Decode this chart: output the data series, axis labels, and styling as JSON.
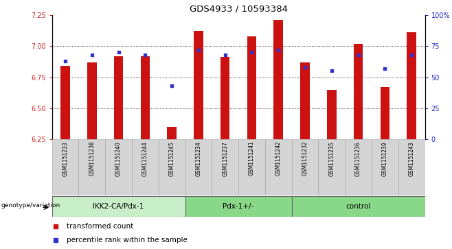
{
  "title": "GDS4933 / 10593384",
  "samples": [
    "GSM1151233",
    "GSM1151238",
    "GSM1151240",
    "GSM1151244",
    "GSM1151245",
    "GSM1151234",
    "GSM1151237",
    "GSM1151241",
    "GSM1151242",
    "GSM1151232",
    "GSM1151235",
    "GSM1151236",
    "GSM1151239",
    "GSM1151243"
  ],
  "red_values": [
    6.84,
    6.87,
    6.92,
    6.92,
    6.35,
    7.12,
    6.91,
    7.08,
    7.21,
    6.87,
    6.65,
    7.02,
    6.67,
    7.11
  ],
  "blue_values": [
    63,
    68,
    70,
    68,
    43,
    72,
    68,
    70,
    72,
    58,
    55,
    68,
    57,
    68
  ],
  "ylim_left": [
    6.25,
    7.25
  ],
  "ylim_right": [
    0,
    100
  ],
  "yticks_left": [
    6.25,
    6.5,
    6.75,
    7.0,
    7.25
  ],
  "yticks_right": [
    0,
    25,
    50,
    75,
    100
  ],
  "ytick_labels_right": [
    "0",
    "25",
    "50",
    "75",
    "100%"
  ],
  "groups": [
    {
      "label": "IKK2-CA/Pdx-1",
      "start": 0,
      "end": 4
    },
    {
      "label": "Pdx-1+/-",
      "start": 5,
      "end": 8
    },
    {
      "label": "control",
      "start": 9,
      "end": 13
    }
  ],
  "group_label": "genotype/variation",
  "legend_red": "transformed count",
  "legend_blue": "percentile rank within the sample",
  "bar_color": "#cc1111",
  "dot_color": "#3333cc",
  "tick_area_color": "#d4d4d4",
  "group1_color": "#c8eec8",
  "group2_color": "#88d888",
  "group3_color": "#88d888",
  "grid_yticks": [
    6.5,
    6.75,
    7.0
  ],
  "bar_width": 0.35
}
